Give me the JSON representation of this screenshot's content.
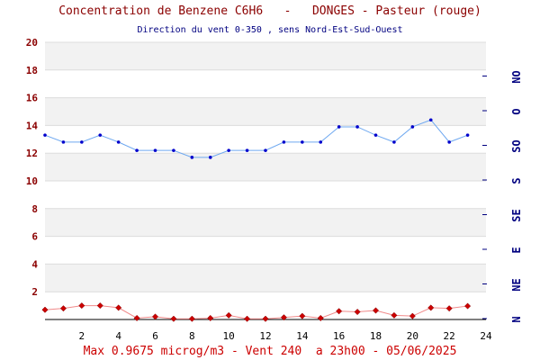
{
  "chart_data": {
    "type": "line",
    "title_left": "Concentration de Benzene C6H6",
    "title_sep": "-",
    "title_right": "DONGES - Pasteur (rouge)",
    "subtitle": "Direction du vent 0-350 , sens Nord-Est-Sud-Ouest",
    "footer": "Max 0.9675 microg/m3 - Vent 240  a 23h00 - 05/06/2025",
    "xlim": [
      0,
      24
    ],
    "ylim": [
      0,
      20
    ],
    "x_ticks": [
      2,
      4,
      6,
      8,
      10,
      12,
      14,
      16,
      18,
      20,
      22,
      24
    ],
    "y_ticks": [
      2,
      4,
      6,
      8,
      10,
      12,
      14,
      16,
      18,
      20
    ],
    "right_axis_labels": [
      "N",
      "NE",
      "E",
      "SE",
      "S",
      "SO",
      "O",
      "NO"
    ],
    "grid": "horizontal bands",
    "series": [
      {
        "name": "benzene",
        "color": "#cc0000",
        "marker": "diamond",
        "x": [
          0,
          1,
          2,
          3,
          4,
          5,
          6,
          7,
          8,
          9,
          10,
          11,
          12,
          13,
          14,
          15,
          16,
          17,
          18,
          19,
          20,
          21,
          22,
          23
        ],
        "values": [
          0.7,
          0.8,
          1.0,
          1.0,
          0.85,
          0.1,
          0.2,
          0.05,
          0.05,
          0.1,
          0.3,
          0.05,
          0.05,
          0.15,
          0.25,
          0.1,
          0.6,
          0.55,
          0.65,
          0.3,
          0.25,
          0.85,
          0.8,
          0.97
        ]
      },
      {
        "name": "wind-direction",
        "color": "#1e6fd9",
        "marker": "dot",
        "x": [
          0,
          1,
          2,
          3,
          4,
          5,
          6,
          7,
          8,
          9,
          10,
          11,
          12,
          13,
          14,
          15,
          16,
          17,
          18,
          19,
          20,
          21,
          22,
          23
        ],
        "values": [
          13.3,
          12.8,
          12.8,
          13.3,
          12.8,
          12.2,
          12.2,
          12.2,
          11.7,
          11.7,
          12.2,
          12.2,
          12.2,
          12.8,
          12.8,
          12.8,
          13.9,
          13.9,
          13.3,
          12.8,
          13.9,
          14.4,
          12.8,
          13.3
        ]
      }
    ]
  }
}
